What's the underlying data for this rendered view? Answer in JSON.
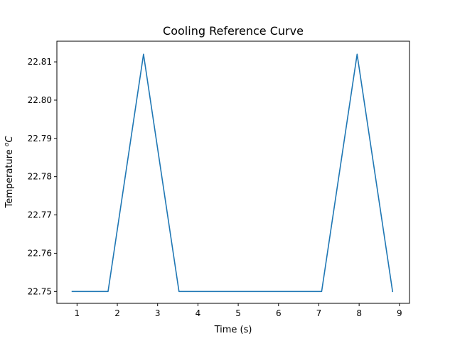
{
  "chart_data": {
    "type": "line",
    "title": "Cooling Reference Curve",
    "xlabel": "Time (s)",
    "ylabel_main": "Temperature ",
    "ylabel_sup": "o",
    "ylabel_unit": "C",
    "xlim": [
      0.5,
      9.25
    ],
    "ylim": [
      22.7469,
      22.8154
    ],
    "xticks": [
      1,
      2,
      3,
      4,
      5,
      6,
      7,
      8,
      9
    ],
    "yticks": [
      22.75,
      22.76,
      22.77,
      22.78,
      22.79,
      22.8,
      22.81
    ],
    "ytick_labels": [
      "22.75",
      "22.76",
      "22.77",
      "22.78",
      "22.79",
      "22.80",
      "22.81"
    ],
    "grid": false,
    "series": [
      {
        "color": "#1f77b4",
        "x": [
          0.88,
          1.77,
          2.65,
          3.53,
          7.07,
          7.95,
          8.83
        ],
        "y": [
          22.75,
          22.75,
          22.812,
          22.75,
          22.75,
          22.812,
          22.75
        ]
      }
    ]
  }
}
